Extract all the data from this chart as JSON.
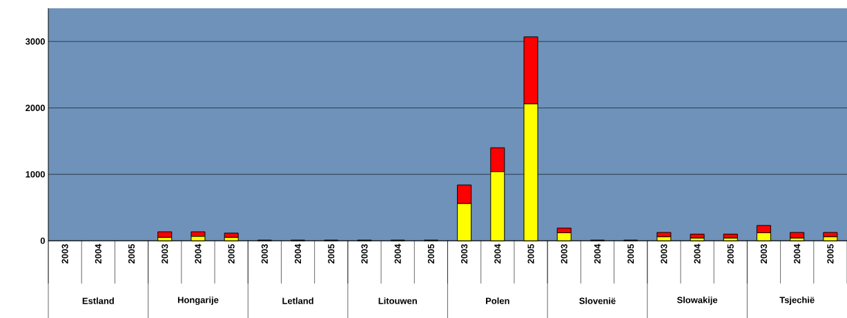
{
  "chart_data": {
    "type": "bar",
    "stacked": true,
    "grid": "y",
    "categories": [
      "2003",
      "2004",
      "2005",
      "2003",
      "2004",
      "2005",
      "2003",
      "2004",
      "2005",
      "2003",
      "2004",
      "2005",
      "2003",
      "2004",
      "2005",
      "2003",
      "2004",
      "2005",
      "2003",
      "2004",
      "2005",
      "2003",
      "2004",
      "2005"
    ],
    "series": [
      {
        "color": "#ffff00",
        "values": [
          0,
          0,
          0,
          50,
          65,
          50,
          5,
          5,
          5,
          5,
          5,
          5,
          560,
          1040,
          2060,
          120,
          5,
          5,
          60,
          40,
          40,
          120,
          40,
          60
        ]
      },
      {
        "color": "#ff0000",
        "values": [
          0,
          0,
          0,
          85,
          70,
          65,
          5,
          5,
          5,
          5,
          5,
          5,
          280,
          360,
          1010,
          70,
          5,
          5,
          65,
          60,
          60,
          110,
          85,
          65
        ]
      }
    ],
    "ylim": [
      0,
      3500
    ],
    "yticks": [
      0,
      1000,
      2000,
      3000
    ],
    "annotations": [
      "Estland",
      "Hongarije",
      "Letland",
      "Litouwen",
      "Polen",
      "Slovenië",
      "Slowakije",
      "Tsjechië"
    ]
  }
}
